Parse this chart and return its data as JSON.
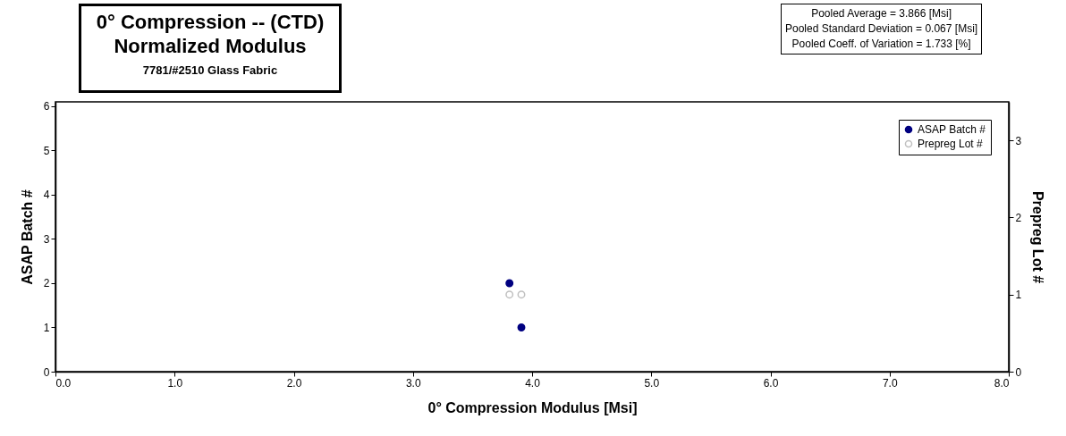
{
  "chart_data": {
    "type": "scatter",
    "title": "0° Compression -- (CTD)\nNormalized Modulus",
    "subtitle": "7781/#2510 Glass Fabric",
    "xlabel": "0° Compression  Modulus  [Msi]",
    "ylabel": "ASAP Batch #",
    "y2label": "Prepreg Lot #",
    "annotations": [
      "Pooled Average = 3.866 [Msi]",
      "Pooled Standard Deviation = 0.067 [Msi]",
      "Pooled Coeff. of Variation = 1.733 [%]"
    ],
    "xlim": [
      0,
      8
    ],
    "xticks": [
      {
        "value": 0,
        "label": "0.0"
      },
      {
        "value": 1,
        "label": "1.0"
      },
      {
        "value": 2,
        "label": "2.0"
      },
      {
        "value": 3,
        "label": "3.0"
      },
      {
        "value": 4,
        "label": "4.0"
      },
      {
        "value": 5,
        "label": "5.0"
      },
      {
        "value": 6,
        "label": "6.0"
      },
      {
        "value": 7,
        "label": "7.0"
      },
      {
        "value": 8,
        "label": "8.0"
      }
    ],
    "ylim": [
      0,
      6.1
    ],
    "yticks": [
      0,
      1,
      2,
      3,
      4,
      5,
      6
    ],
    "y2lim": [
      0,
      3.5
    ],
    "y2ticks": [
      0,
      1,
      2,
      3
    ],
    "x": [
      3.81,
      3.91
    ],
    "legend": "top right",
    "marker": "circle",
    "grid": false,
    "series": [
      {
        "name": "ASAP Batch #",
        "color": "#000080",
        "values": [
          2,
          1
        ]
      },
      {
        "name": "Prepreg Lot #",
        "color": "#c0c0c0",
        "axis": "y2",
        "values": [
          1,
          1
        ]
      }
    ]
  }
}
